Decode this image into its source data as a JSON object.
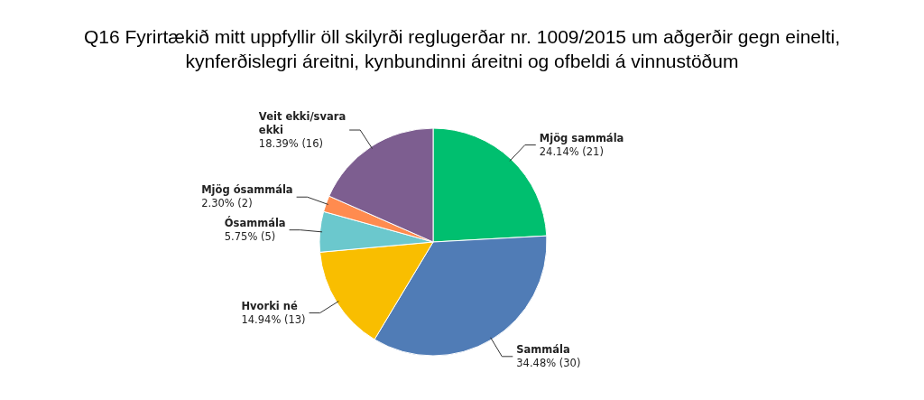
{
  "chart_data": {
    "type": "pie",
    "title": "Q16 Fyrirtækið mitt uppfyllir öll skilyrði reglugerðar nr. 1009/2015 um aðgerðir gegn einelti, kynferðislegri áreitni, kynbundinni áreitni og ofbeldi á vinnustöðum",
    "categories": [
      "Mjög sammála",
      "Sammála",
      "Hvorki né",
      "Ósammála",
      "Mjög ósammála",
      "Veit ekki/svara ekki"
    ],
    "values": [
      21,
      30,
      13,
      5,
      2,
      16
    ],
    "value_labels": [
      "24.14% (21)",
      "34.48% (30)",
      "14.94% (13)",
      "5.75% (5)",
      "2.30% (2)",
      "18.39% (16)"
    ],
    "colors": [
      "#00bf6f",
      "#507cb6",
      "#f9be00",
      "#6bc8cd",
      "#ff8b4f",
      "#7d5e90"
    ],
    "legend": false
  }
}
